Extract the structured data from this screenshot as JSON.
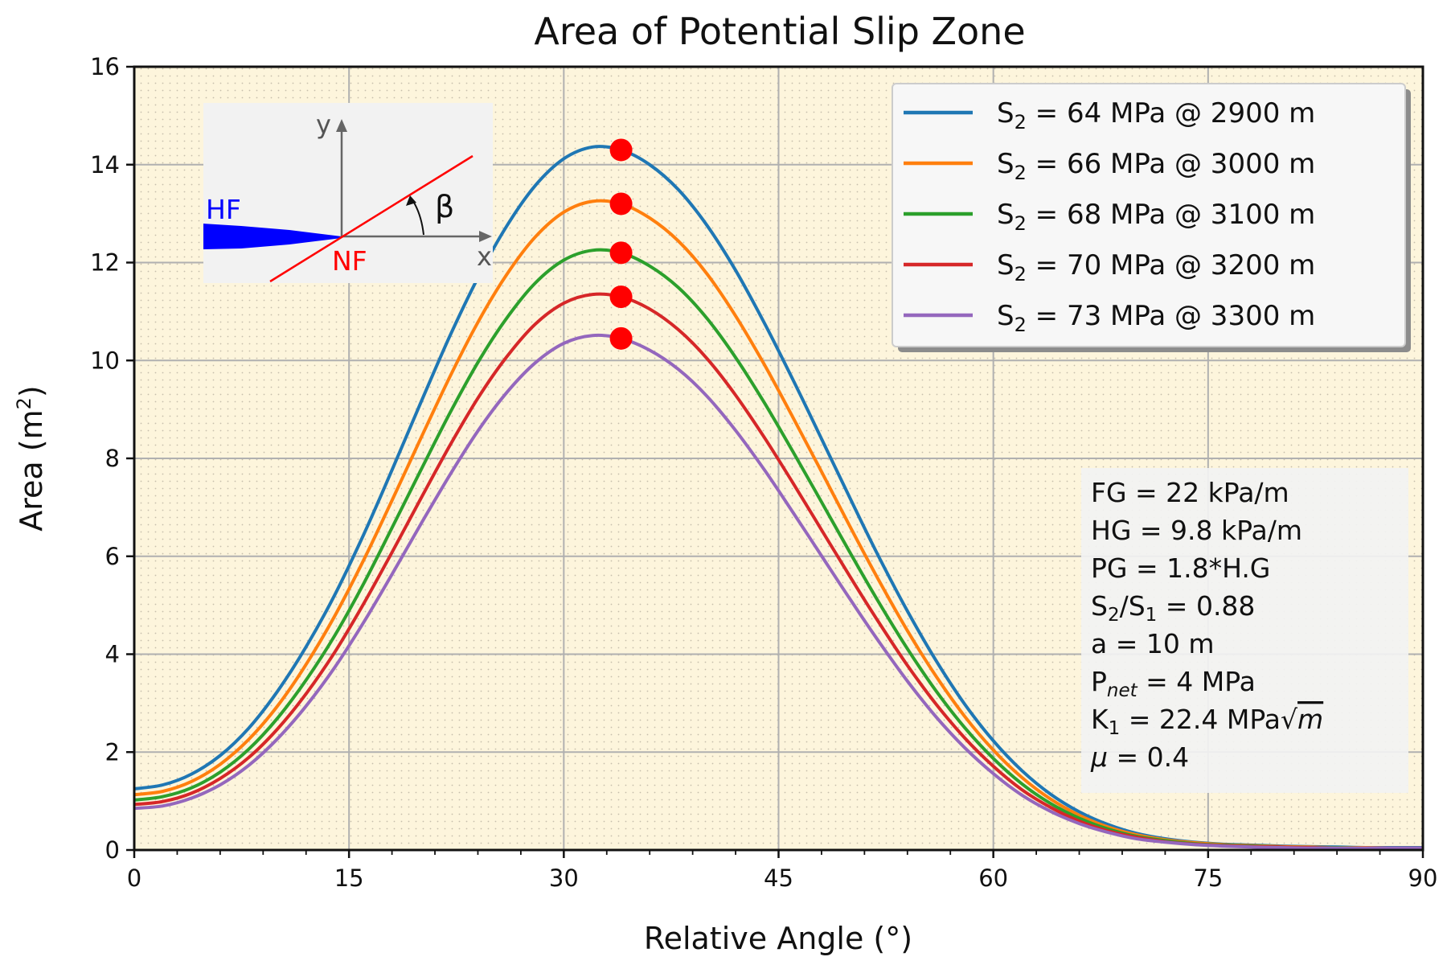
{
  "chart_data": {
    "type": "line",
    "title": "Area of Potential Slip Zone",
    "xlabel": "Relative Angle (°)",
    "ylabel": "Area (m²)",
    "xlim": [
      0,
      90
    ],
    "ylim": [
      0,
      16
    ],
    "xticks": [
      0,
      15,
      30,
      45,
      60,
      75,
      90
    ],
    "yticks": [
      0,
      2,
      4,
      6,
      8,
      10,
      12,
      14,
      16
    ],
    "grid": true,
    "legend_position": "top-right",
    "x": [
      0,
      2,
      4,
      6,
      8,
      10,
      12,
      14,
      16,
      18,
      20,
      22,
      24,
      26,
      28,
      30,
      32,
      34,
      36,
      38,
      40,
      42,
      44,
      46,
      48,
      50,
      52,
      54,
      56,
      58,
      60,
      62,
      64,
      66,
      68,
      70,
      72,
      74,
      76,
      78,
      80,
      82,
      84,
      86,
      88,
      90
    ],
    "series": [
      {
        "name": "S2 = 64 MPa @ 2900 m",
        "color": "#1f77b4",
        "peak_x": 34,
        "peak_y": 14.3,
        "values": [
          1.25,
          1.33,
          1.55,
          1.93,
          2.49,
          3.24,
          4.15,
          5.21,
          6.43,
          7.76,
          9.13,
          10.47,
          11.69,
          12.74,
          13.57,
          14.12,
          14.36,
          14.3,
          14.0,
          13.49,
          12.76,
          11.84,
          10.77,
          9.61,
          8.4,
          7.18,
          5.99,
          4.88,
          3.87,
          2.98,
          2.23,
          1.62,
          1.14,
          0.78,
          0.52,
          0.34,
          0.23,
          0.16,
          0.12,
          0.1,
          0.08,
          0.07,
          0.06,
          0.05,
          0.05,
          0.05
        ]
      },
      {
        "name": "S2 = 66 MPa @ 3000 m",
        "color": "#ff7f0e",
        "peak_x": 34,
        "peak_y": 13.2,
        "values": [
          1.13,
          1.2,
          1.4,
          1.75,
          2.26,
          2.94,
          3.79,
          4.78,
          5.91,
          7.14,
          8.4,
          9.64,
          10.78,
          11.75,
          12.52,
          13.03,
          13.25,
          13.2,
          12.91,
          12.44,
          11.77,
          10.91,
          9.92,
          8.84,
          7.73,
          6.6,
          5.51,
          4.48,
          3.55,
          2.73,
          2.04,
          1.48,
          1.04,
          0.71,
          0.47,
          0.31,
          0.21,
          0.15,
          0.11,
          0.09,
          0.07,
          0.06,
          0.05,
          0.05,
          0.04,
          0.04
        ]
      },
      {
        "name": "S2 = 68 MPa @ 3100 m",
        "color": "#2ca02c",
        "peak_x": 34,
        "peak_y": 12.2,
        "values": [
          1.02,
          1.09,
          1.27,
          1.59,
          2.06,
          2.69,
          3.47,
          4.38,
          5.43,
          6.58,
          7.75,
          8.9,
          9.96,
          10.86,
          11.58,
          12.05,
          12.25,
          12.2,
          11.93,
          11.49,
          10.86,
          10.06,
          9.14,
          8.14,
          7.11,
          6.07,
          5.06,
          4.11,
          3.25,
          2.5,
          1.87,
          1.35,
          0.95,
          0.65,
          0.43,
          0.28,
          0.19,
          0.13,
          0.1,
          0.08,
          0.06,
          0.05,
          0.05,
          0.04,
          0.04,
          0.04
        ]
      },
      {
        "name": "S2 = 70 MPa @ 3200 m",
        "color": "#d62728",
        "peak_x": 34,
        "peak_y": 11.3,
        "values": [
          0.93,
          0.99,
          1.16,
          1.46,
          1.89,
          2.47,
          3.19,
          4.04,
          5.02,
          6.08,
          7.17,
          8.24,
          9.23,
          10.07,
          10.74,
          11.17,
          11.35,
          11.3,
          11.05,
          10.63,
          10.04,
          9.29,
          8.43,
          7.5,
          6.54,
          5.58,
          4.65,
          3.77,
          2.98,
          2.29,
          1.71,
          1.23,
          0.87,
          0.59,
          0.39,
          0.26,
          0.17,
          0.12,
          0.09,
          0.07,
          0.06,
          0.05,
          0.04,
          0.04,
          0.04,
          0.04
        ]
      },
      {
        "name": "S2 = 73 MPa @ 3300 m",
        "color": "#9467bd",
        "peak_x": 34,
        "peak_y": 10.45,
        "values": [
          0.85,
          0.9,
          1.06,
          1.33,
          1.73,
          2.27,
          2.94,
          3.73,
          4.64,
          5.63,
          6.65,
          7.64,
          8.56,
          9.34,
          9.95,
          10.35,
          10.51,
          10.45,
          10.21,
          9.82,
          9.27,
          8.57,
          7.77,
          6.9,
          6.01,
          5.12,
          4.26,
          3.45,
          2.72,
          2.09,
          1.56,
          1.12,
          0.79,
          0.54,
          0.36,
          0.23,
          0.16,
          0.11,
          0.08,
          0.06,
          0.05,
          0.04,
          0.04,
          0.04,
          0.04,
          0.04
        ]
      }
    ],
    "annotations": [
      "FG = 22 kPa/m",
      "HG = 9.8 kPa/m",
      "PG = 1.8*H.G",
      "S2/S1 = 0.88",
      "a = 10 m",
      "Pnet = 4 MPa",
      "K1 = 22.4 MPa√m",
      "μ = 0.4"
    ]
  },
  "legend_entries": [
    {
      "s": "S",
      "sub": "2",
      "rest": " = 64 MPa @ 2900 m"
    },
    {
      "s": "S",
      "sub": "2",
      "rest": " = 66 MPa @ 3000 m"
    },
    {
      "s": "S",
      "sub": "2",
      "rest": " = 68 MPa @ 3100 m"
    },
    {
      "s": "S",
      "sub": "2",
      "rest": " = 70 MPa @ 3200 m"
    },
    {
      "s": "S",
      "sub": "2",
      "rest": " = 73 MPa @ 3300 m"
    }
  ],
  "params": {
    "fg": "FG = 22 kPa/m",
    "hg": "HG = 9.8 kPa/m",
    "pg": "PG = 1.8*H.G",
    "s2s1_a": "S",
    "s2s1_sub1": "2",
    "s2s1_b": "/S",
    "s2s1_sub2": "1",
    "s2s1_c": " = 0.88",
    "a": "a = 10 m",
    "pnet_a": "P",
    "pnet_sub": "net",
    "pnet_b": " = 4 MPa",
    "k1_a": "K",
    "k1_sub": "1",
    "k1_b": " = 22.4 MPa",
    "k1_sqrt": "√",
    "k1_m": "m",
    "mu_sym": "μ",
    "mu_rest": " = 0.4"
  },
  "ylabel_parts": {
    "main": "Area (m",
    "sup": "2",
    "close": ")"
  },
  "inset": {
    "y_label": "y",
    "x_label": "x",
    "hf_label": "HF",
    "nf_label": "NF",
    "beta_label": "β",
    "hf_color": "#0000ff",
    "nf_color": "#ff0000"
  },
  "colors": {
    "plot_bg": "#fdf5dc",
    "grid": "#b0b0b0",
    "marker": "#ff0000"
  }
}
